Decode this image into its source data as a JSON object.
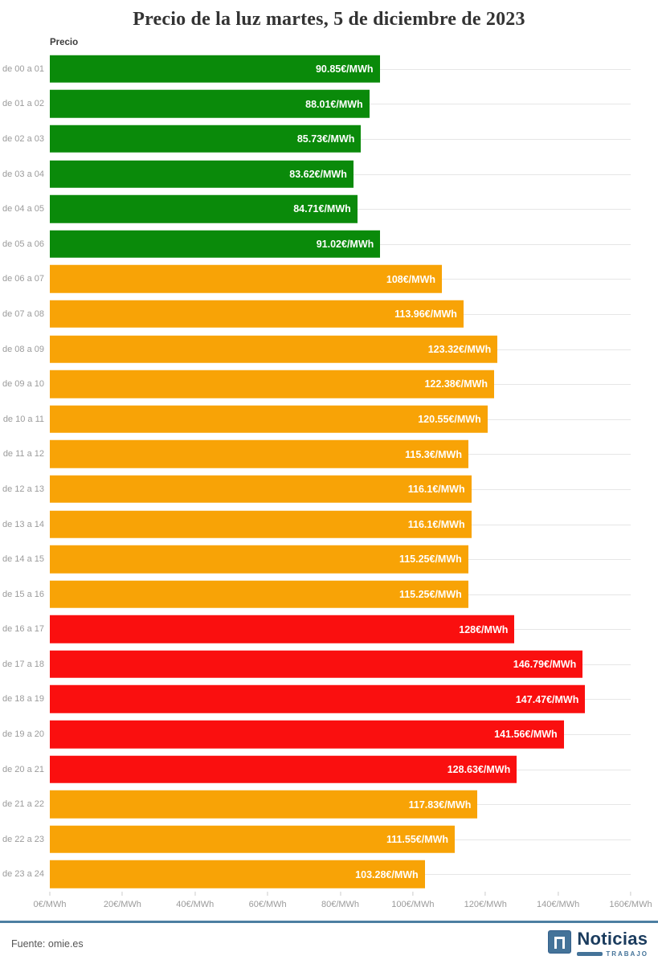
{
  "title": "Precio de la luz martes, 5 de diciembre de 2023",
  "axis_label": "Precio",
  "footer": {
    "source": "Fuente: omie.es",
    "brand_name": "Noticias",
    "brand_sub": "TRABAJO"
  },
  "colors": {
    "low": "#0a8a0a",
    "mid": "#f8a306",
    "high": "#fa0f0f",
    "gridline": "#e6e6e6",
    "separator_blue": "#4d7fa2",
    "brand_navy": "#1b3c5e",
    "brand_blue": "#447399"
  },
  "chart_data": {
    "type": "bar",
    "orientation": "horizontal",
    "title": "Precio de la luz martes, 5 de diciembre de 2023",
    "xlabel": "",
    "ylabel": "Precio",
    "xlim": [
      0,
      160
    ],
    "grid": "horizontal row lines only",
    "legend": "none",
    "value_unit": "€/MWh",
    "categories": [
      "de 00 a 01",
      "de 01 a 02",
      "de 02 a 03",
      "de 03 a 04",
      "de 04 a 05",
      "de 05 a 06",
      "de 06 a 07",
      "de 07 a 08",
      "de 08 a 09",
      "de 09 a 10",
      "de 10 a 11",
      "de 11 a 12",
      "de 12 a 13",
      "de 13 a 14",
      "de 14 a 15",
      "de 15 a 16",
      "de 16 a 17",
      "de 17 a 18",
      "de 18 a 19",
      "de 19 a 20",
      "de 20 a 21",
      "de 21 a 22",
      "de 22 a 23",
      "de 23 a 24"
    ],
    "values": [
      90.85,
      88.01,
      85.73,
      83.62,
      84.71,
      91.02,
      108,
      113.96,
      123.32,
      122.38,
      120.55,
      115.3,
      116.1,
      116.1,
      115.25,
      115.25,
      128,
      146.79,
      147.47,
      141.56,
      128.63,
      117.83,
      111.55,
      103.28
    ],
    "labels": [
      "90.85€/MWh",
      "88.01€/MWh",
      "85.73€/MWh",
      "83.62€/MWh",
      "84.71€/MWh",
      "91.02€/MWh",
      "108€/MWh",
      "113.96€/MWh",
      "123.32€/MWh",
      "122.38€/MWh",
      "120.55€/MWh",
      "115.3€/MWh",
      "116.1€/MWh",
      "116.1€/MWh",
      "115.25€/MWh",
      "115.25€/MWh",
      "128€/MWh",
      "146.79€/MWh",
      "147.47€/MWh",
      "141.56€/MWh",
      "128.63€/MWh",
      "117.83€/MWh",
      "111.55€/MWh",
      "103.28€/MWh"
    ],
    "levels": [
      "low",
      "low",
      "low",
      "low",
      "low",
      "low",
      "mid",
      "mid",
      "mid",
      "mid",
      "mid",
      "mid",
      "mid",
      "mid",
      "mid",
      "mid",
      "high",
      "high",
      "high",
      "high",
      "high",
      "mid",
      "mid",
      "mid"
    ],
    "x_tick_values": [
      0,
      20,
      40,
      60,
      80,
      100,
      120,
      140,
      160
    ],
    "x_tick_labels": [
      "0€/MWh",
      "20€/MWh",
      "40€/MWh",
      "60€/MWh",
      "80€/MWh",
      "100€/MWh",
      "120€/MWh",
      "140€/MWh",
      "160€/MWh"
    ]
  }
}
